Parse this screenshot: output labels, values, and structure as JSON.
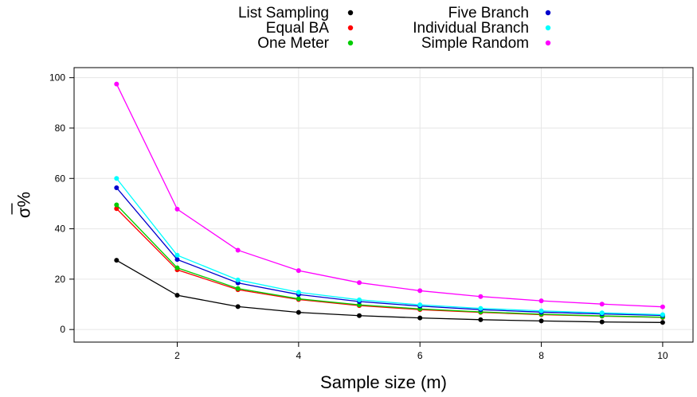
{
  "chart_data": {
    "type": "line",
    "title": "",
    "xlabel": "Sample size (m)",
    "ylabel": "σ%",
    "ylabel_overline": true,
    "xlim": [
      0.3,
      10.5
    ],
    "ylim": [
      -5,
      104
    ],
    "xticks": [
      2,
      4,
      6,
      8,
      10
    ],
    "yticks": [
      0,
      20,
      40,
      60,
      80,
      100
    ],
    "grid": true,
    "legend_position": "top-center",
    "x": [
      1,
      2,
      3,
      4,
      5,
      6,
      7,
      8,
      9,
      10
    ],
    "series": [
      {
        "name": "List Sampling",
        "color": "#000000",
        "values": [
          27.5,
          13.6,
          9.1,
          6.8,
          5.5,
          4.6,
          3.9,
          3.4,
          3.0,
          2.8
        ]
      },
      {
        "name": "Equal BA",
        "color": "#ff0000",
        "values": [
          48.0,
          23.7,
          15.8,
          11.9,
          9.5,
          7.9,
          6.8,
          5.9,
          5.3,
          4.8
        ]
      },
      {
        "name": "One Meter",
        "color": "#00cd00",
        "values": [
          49.5,
          24.5,
          16.3,
          12.2,
          9.8,
          8.2,
          7.0,
          6.1,
          5.4,
          4.9
        ]
      },
      {
        "name": "Five Branch",
        "color": "#0000cd",
        "values": [
          56.3,
          27.8,
          18.5,
          13.9,
          11.1,
          9.3,
          7.9,
          6.9,
          6.2,
          5.6
        ]
      },
      {
        "name": "Individual Branch",
        "color": "#00ffff",
        "values": [
          60.0,
          29.5,
          19.7,
          14.8,
          11.8,
          9.8,
          8.4,
          7.4,
          6.6,
          5.9
        ]
      },
      {
        "name": "Simple Random",
        "color": "#ff00ff",
        "values": [
          97.5,
          47.8,
          31.5,
          23.4,
          18.6,
          15.4,
          13.1,
          11.4,
          10.1,
          9.0
        ]
      }
    ]
  }
}
